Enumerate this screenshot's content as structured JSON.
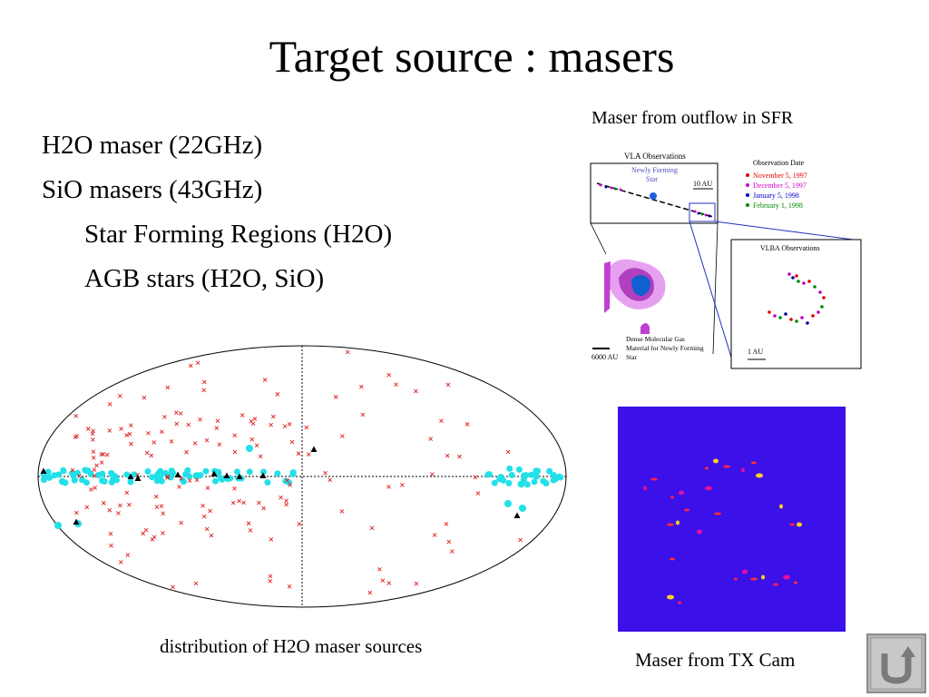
{
  "slide": {
    "title": "Target source : masers",
    "bullets": [
      "H2O maser (22GHz)",
      "SiO masers (43GHz)",
      "Star Forming Regions (H2O)",
      "AGB stars (H2O, SiO)"
    ]
  },
  "sfr_figure": {
    "caption": "Maser from outflow in SFR",
    "vla_title": "VLA Observations",
    "star_label_1": "Newly Forming",
    "star_label_2": "Star",
    "scale_10au": "10 AU",
    "legend_title": "Observation Date",
    "legend": [
      {
        "label": "November 5, 1997",
        "color": "#e00000"
      },
      {
        "label": "December 5, 1997",
        "color": "#d000d0"
      },
      {
        "label": "January 5, 1998",
        "color": "#0000d0"
      },
      {
        "label": "February 1, 1998",
        "color": "#008800"
      }
    ],
    "vlba_title": "VLBA Observations",
    "scale_1au": "1 AU",
    "gas_label_1": "Dense Molecular Gas",
    "gas_label_2": "Material for Newly Forming",
    "gas_label_3": "Star",
    "scale_6000au": "6000 AU"
  },
  "distribution_figure": {
    "caption": "distribution of H2O maser sources"
  },
  "tx_figure": {
    "caption": "Maser from TX Cam",
    "background": "#3c10e8"
  },
  "nav": {
    "icon": "u-turn-arrow-icon"
  }
}
